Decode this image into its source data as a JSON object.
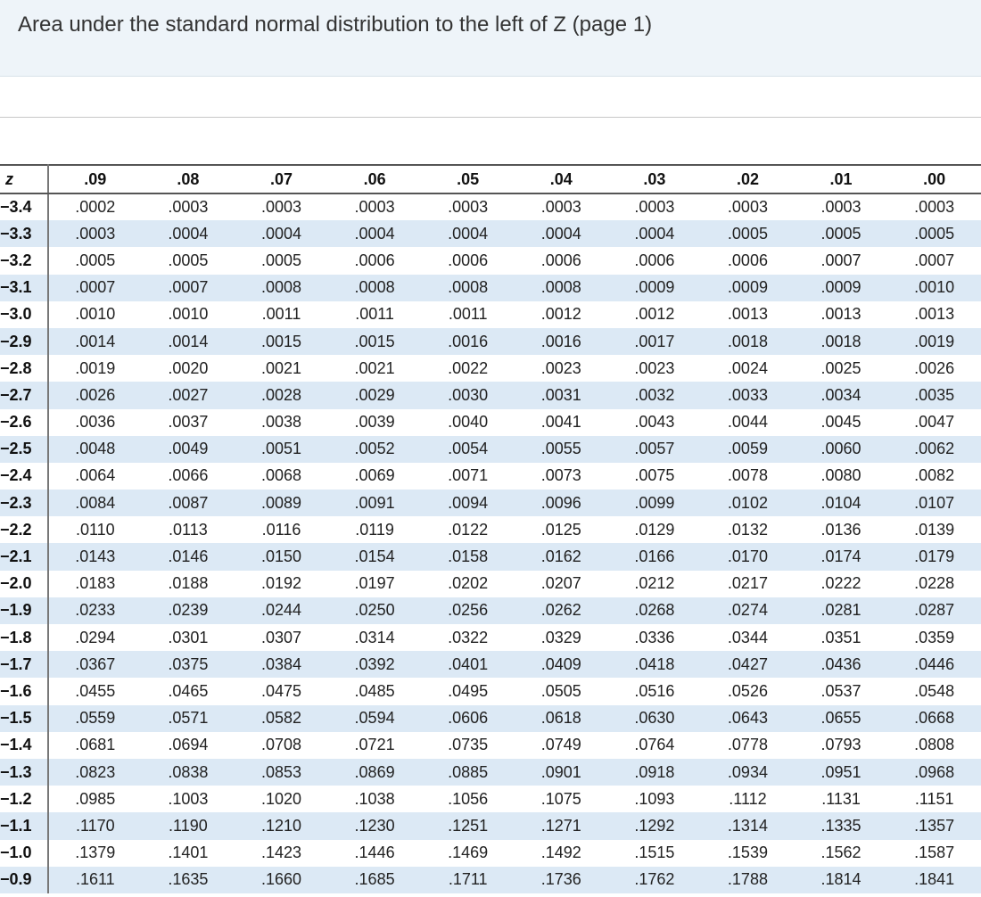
{
  "header": {
    "title": "Area under the standard normal distribution to the left of Z (page 1)"
  },
  "table": {
    "z_header": "z",
    "columns": [
      ".09",
      ".08",
      ".07",
      ".06",
      ".05",
      ".04",
      ".03",
      ".02",
      ".01",
      ".00"
    ],
    "rows": [
      {
        "z": "−3.4",
        "values": [
          ".0002",
          ".0003",
          ".0003",
          ".0003",
          ".0003",
          ".0003",
          ".0003",
          ".0003",
          ".0003",
          ".0003"
        ]
      },
      {
        "z": "−3.3",
        "values": [
          ".0003",
          ".0004",
          ".0004",
          ".0004",
          ".0004",
          ".0004",
          ".0004",
          ".0005",
          ".0005",
          ".0005"
        ]
      },
      {
        "z": "−3.2",
        "values": [
          ".0005",
          ".0005",
          ".0005",
          ".0006",
          ".0006",
          ".0006",
          ".0006",
          ".0006",
          ".0007",
          ".0007"
        ]
      },
      {
        "z": "−3.1",
        "values": [
          ".0007",
          ".0007",
          ".0008",
          ".0008",
          ".0008",
          ".0008",
          ".0009",
          ".0009",
          ".0009",
          ".0010"
        ]
      },
      {
        "z": "−3.0",
        "values": [
          ".0010",
          ".0010",
          ".0011",
          ".0011",
          ".0011",
          ".0012",
          ".0012",
          ".0013",
          ".0013",
          ".0013"
        ]
      },
      {
        "z": "−2.9",
        "values": [
          ".0014",
          ".0014",
          ".0015",
          ".0015",
          ".0016",
          ".0016",
          ".0017",
          ".0018",
          ".0018",
          ".0019"
        ]
      },
      {
        "z": "−2.8",
        "values": [
          ".0019",
          ".0020",
          ".0021",
          ".0021",
          ".0022",
          ".0023",
          ".0023",
          ".0024",
          ".0025",
          ".0026"
        ]
      },
      {
        "z": "−2.7",
        "values": [
          ".0026",
          ".0027",
          ".0028",
          ".0029",
          ".0030",
          ".0031",
          ".0032",
          ".0033",
          ".0034",
          ".0035"
        ]
      },
      {
        "z": "−2.6",
        "values": [
          ".0036",
          ".0037",
          ".0038",
          ".0039",
          ".0040",
          ".0041",
          ".0043",
          ".0044",
          ".0045",
          ".0047"
        ]
      },
      {
        "z": "−2.5",
        "values": [
          ".0048",
          ".0049",
          ".0051",
          ".0052",
          ".0054",
          ".0055",
          ".0057",
          ".0059",
          ".0060",
          ".0062"
        ]
      },
      {
        "z": "−2.4",
        "values": [
          ".0064",
          ".0066",
          ".0068",
          ".0069",
          ".0071",
          ".0073",
          ".0075",
          ".0078",
          ".0080",
          ".0082"
        ]
      },
      {
        "z": "−2.3",
        "values": [
          ".0084",
          ".0087",
          ".0089",
          ".0091",
          ".0094",
          ".0096",
          ".0099",
          ".0102",
          ".0104",
          ".0107"
        ]
      },
      {
        "z": "−2.2",
        "values": [
          ".0110",
          ".0113",
          ".0116",
          ".0119",
          ".0122",
          ".0125",
          ".0129",
          ".0132",
          ".0136",
          ".0139"
        ]
      },
      {
        "z": "−2.1",
        "values": [
          ".0143",
          ".0146",
          ".0150",
          ".0154",
          ".0158",
          ".0162",
          ".0166",
          ".0170",
          ".0174",
          ".0179"
        ]
      },
      {
        "z": "−2.0",
        "values": [
          ".0183",
          ".0188",
          ".0192",
          ".0197",
          ".0202",
          ".0207",
          ".0212",
          ".0217",
          ".0222",
          ".0228"
        ]
      },
      {
        "z": "−1.9",
        "values": [
          ".0233",
          ".0239",
          ".0244",
          ".0250",
          ".0256",
          ".0262",
          ".0268",
          ".0274",
          ".0281",
          ".0287"
        ]
      },
      {
        "z": "−1.8",
        "values": [
          ".0294",
          ".0301",
          ".0307",
          ".0314",
          ".0322",
          ".0329",
          ".0336",
          ".0344",
          ".0351",
          ".0359"
        ]
      },
      {
        "z": "−1.7",
        "values": [
          ".0367",
          ".0375",
          ".0384",
          ".0392",
          ".0401",
          ".0409",
          ".0418",
          ".0427",
          ".0436",
          ".0446"
        ]
      },
      {
        "z": "−1.6",
        "values": [
          ".0455",
          ".0465",
          ".0475",
          ".0485",
          ".0495",
          ".0505",
          ".0516",
          ".0526",
          ".0537",
          ".0548"
        ]
      },
      {
        "z": "−1.5",
        "values": [
          ".0559",
          ".0571",
          ".0582",
          ".0594",
          ".0606",
          ".0618",
          ".0630",
          ".0643",
          ".0655",
          ".0668"
        ]
      },
      {
        "z": "−1.4",
        "values": [
          ".0681",
          ".0694",
          ".0708",
          ".0721",
          ".0735",
          ".0749",
          ".0764",
          ".0778",
          ".0793",
          ".0808"
        ]
      },
      {
        "z": "−1.3",
        "values": [
          ".0823",
          ".0838",
          ".0853",
          ".0869",
          ".0885",
          ".0901",
          ".0918",
          ".0934",
          ".0951",
          ".0968"
        ]
      },
      {
        "z": "−1.2",
        "values": [
          ".0985",
          ".1003",
          ".1020",
          ".1038",
          ".1056",
          ".1075",
          ".1093",
          ".1112",
          ".1131",
          ".1151"
        ]
      },
      {
        "z": "−1.1",
        "values": [
          ".1170",
          ".1190",
          ".1210",
          ".1230",
          ".1251",
          ".1271",
          ".1292",
          ".1314",
          ".1335",
          ".1357"
        ]
      },
      {
        "z": "−1.0",
        "values": [
          ".1379",
          ".1401",
          ".1423",
          ".1446",
          ".1469",
          ".1492",
          ".1515",
          ".1539",
          ".1562",
          ".1587"
        ]
      },
      {
        "z": "−0.9",
        "values": [
          ".1611",
          ".1635",
          ".1660",
          ".1685",
          ".1711",
          ".1736",
          ".1762",
          ".1788",
          ".1814",
          ".1841"
        ]
      }
    ]
  }
}
